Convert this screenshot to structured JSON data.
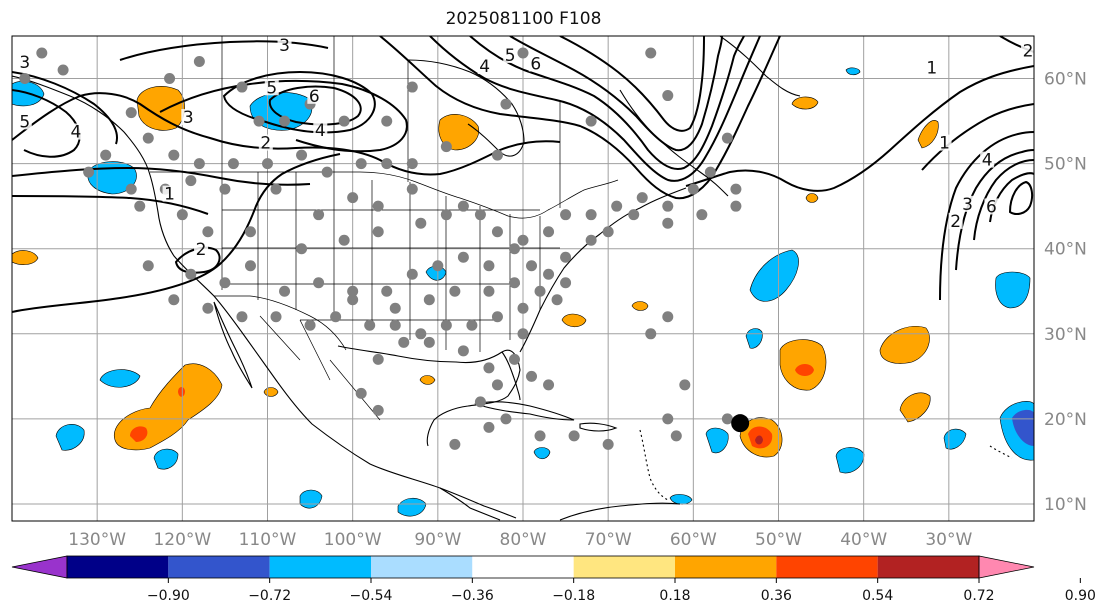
{
  "title": "2025081100 F108",
  "map": {
    "lon_range": [
      -140,
      -20
    ],
    "lat_range": [
      8,
      65
    ],
    "lon_ticks": [
      -130,
      -120,
      -110,
      -100,
      -90,
      -80,
      -70,
      -60,
      -50,
      -40,
      -30
    ],
    "lon_tick_labels": [
      "130°W",
      "120°W",
      "110°W",
      "100°W",
      "90°W",
      "80°W",
      "70°W",
      "60°W",
      "50°W",
      "40°W",
      "30°W"
    ],
    "lat_ticks": [
      10,
      20,
      30,
      40,
      50,
      60
    ],
    "lat_tick_labels": [
      "10°N",
      "20°N",
      "30°N",
      "40°N",
      "50°N",
      "60°N"
    ],
    "gridlines": true,
    "contour_color": "#000000",
    "contour_labels": [
      {
        "text": "3",
        "lon": -138.5,
        "lat": 61.5
      },
      {
        "text": "5",
        "lon": -138.5,
        "lat": 54.5
      },
      {
        "text": "4",
        "lon": -132.5,
        "lat": 53.3
      },
      {
        "text": "3",
        "lon": -119.3,
        "lat": 55.0
      },
      {
        "text": "5",
        "lon": -109.5,
        "lat": 58.5
      },
      {
        "text": "6",
        "lon": -104.5,
        "lat": 57.5
      },
      {
        "text": "4",
        "lon": -103.8,
        "lat": 53.5
      },
      {
        "text": "2",
        "lon": -110.2,
        "lat": 52.0
      },
      {
        "text": "3",
        "lon": -108.0,
        "lat": 63.5
      },
      {
        "text": "1",
        "lon": -121.5,
        "lat": 46.0
      },
      {
        "text": "2",
        "lon": -117.8,
        "lat": 39.5
      },
      {
        "text": "4",
        "lon": -84.5,
        "lat": 61.0
      },
      {
        "text": "5",
        "lon": -81.5,
        "lat": 62.3
      },
      {
        "text": "6",
        "lon": -78.5,
        "lat": 61.3
      },
      {
        "text": "1",
        "lon": -32.0,
        "lat": 60.8
      },
      {
        "text": "1",
        "lon": -30.5,
        "lat": 52.0
      },
      {
        "text": "4",
        "lon": -25.5,
        "lat": 50.0
      },
      {
        "text": "3",
        "lon": -27.8,
        "lat": 44.8
      },
      {
        "text": "2",
        "lon": -29.2,
        "lat": 42.8
      },
      {
        "text": "6",
        "lon": -25.0,
        "lat": 44.5
      },
      {
        "text": "2",
        "lon": -20.7,
        "lat": 62.8
      }
    ],
    "station_marker_color": "#808080",
    "storm_marker": {
      "lon": -54.5,
      "lat": 19.5,
      "color": "#000000"
    }
  },
  "colorbar": {
    "levels": [
      -0.9,
      -0.72,
      -0.54,
      -0.36,
      -0.18,
      0.18,
      0.36,
      0.54,
      0.72,
      0.9
    ],
    "tick_labels": [
      "−0.90",
      "−0.72",
      "−0.54",
      "−0.36",
      "−0.18",
      "0.18",
      "0.36",
      "0.54",
      "0.72",
      "0.90"
    ],
    "colors": [
      "#9933cc",
      "#000088",
      "#3355cc",
      "#00bbff",
      "#aaddff",
      "#ffffff",
      "#ffe680",
      "#ffa500",
      "#ff4400",
      "#b22222",
      "#ff88b0"
    ],
    "extend": "both"
  }
}
